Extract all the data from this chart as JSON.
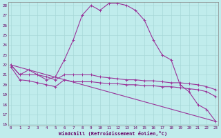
{
  "xlabel": "Windchill (Refroidissement éolien,°C)",
  "background_color": "#c0ecec",
  "grid_color": "#a8d8d8",
  "line_color": "#993399",
  "xmin": 0,
  "xmax": 23,
  "ymin": 16,
  "ymax": 28,
  "series1_x": [
    0,
    1,
    2,
    3,
    4,
    5,
    6,
    7,
    8,
    9,
    10,
    11,
    12,
    13,
    14,
    15,
    16,
    17,
    18,
    19,
    20,
    21,
    22,
    23
  ],
  "series1_y": [
    22.0,
    21.0,
    21.5,
    21.0,
    20.5,
    20.8,
    22.5,
    24.5,
    27.0,
    28.0,
    27.5,
    28.2,
    28.2,
    28.0,
    27.5,
    26.5,
    24.5,
    23.0,
    22.5,
    20.0,
    19.3,
    18.0,
    17.5,
    16.3
  ],
  "series2_x": [
    0,
    1,
    2,
    3,
    4,
    5,
    6,
    7,
    8,
    9,
    10,
    11,
    12,
    13,
    14,
    15,
    16,
    17,
    18,
    19,
    20,
    21,
    22,
    23
  ],
  "series2_y": [
    22.0,
    21.0,
    21.0,
    21.0,
    20.8,
    20.5,
    21.0,
    21.0,
    21.0,
    21.0,
    20.8,
    20.7,
    20.6,
    20.5,
    20.5,
    20.4,
    20.4,
    20.3,
    20.2,
    20.2,
    20.1,
    20.0,
    19.8,
    19.5
  ],
  "series3_x": [
    0,
    1,
    2,
    3,
    4,
    5,
    6,
    7,
    8,
    9,
    10,
    11,
    12,
    13,
    14,
    15,
    16,
    17,
    18,
    19,
    20,
    21,
    22,
    23
  ],
  "series3_y": [
    21.8,
    20.5,
    20.4,
    20.2,
    20.0,
    19.8,
    20.5,
    20.3,
    20.3,
    20.3,
    20.2,
    20.1,
    20.1,
    20.0,
    20.0,
    19.9,
    19.9,
    19.8,
    19.8,
    19.7,
    19.6,
    19.5,
    19.3,
    18.8
  ],
  "series4_x": [
    0,
    23
  ],
  "series4_y": [
    22.0,
    16.3
  ]
}
